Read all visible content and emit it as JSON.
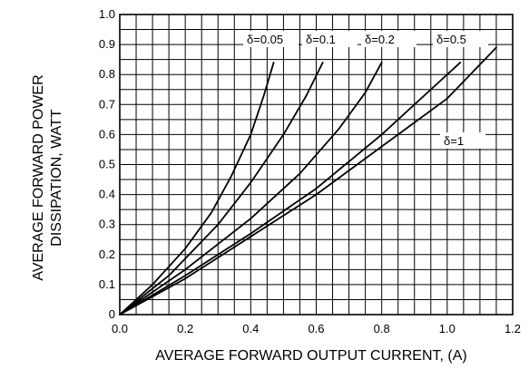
{
  "chart_data": {
    "type": "line",
    "title": "",
    "xlabel": "AVERAGE FORWARD OUTPUT CURRENT, (A)",
    "ylabel_lines": [
      "AVERAGE FORWARD POWER",
      "DISSIPATION, WATT"
    ],
    "xlim": [
      0,
      1.2
    ],
    "ylim": [
      0,
      1.0
    ],
    "x_ticks": [
      "0.0",
      "0.2",
      "0.4",
      "0.6",
      "0.8",
      "1.0",
      "1.2"
    ],
    "y_ticks": [
      "0",
      "0.1",
      "0.2",
      "0.3",
      "0.4",
      "0.5",
      "0.6",
      "0.7",
      "0.8",
      "0.9",
      "1.0"
    ],
    "grid": true,
    "series": [
      {
        "name": "δ=0.05",
        "points": [
          [
            0,
            0
          ],
          [
            0.1,
            0.1
          ],
          [
            0.2,
            0.22
          ],
          [
            0.28,
            0.34
          ],
          [
            0.34,
            0.46
          ],
          [
            0.4,
            0.6
          ],
          [
            0.44,
            0.73
          ],
          [
            0.47,
            0.84
          ]
        ]
      },
      {
        "name": "δ=0.1",
        "points": [
          [
            0,
            0
          ],
          [
            0.15,
            0.13
          ],
          [
            0.3,
            0.3
          ],
          [
            0.4,
            0.44
          ],
          [
            0.5,
            0.6
          ],
          [
            0.57,
            0.73
          ],
          [
            0.62,
            0.84
          ]
        ]
      },
      {
        "name": "δ=0.2",
        "points": [
          [
            0,
            0
          ],
          [
            0.2,
            0.15
          ],
          [
            0.4,
            0.32
          ],
          [
            0.55,
            0.47
          ],
          [
            0.67,
            0.62
          ],
          [
            0.75,
            0.74
          ],
          [
            0.8,
            0.84
          ]
        ]
      },
      {
        "name": "δ=0.5",
        "points": [
          [
            0,
            0
          ],
          [
            0.2,
            0.13
          ],
          [
            0.4,
            0.27
          ],
          [
            0.6,
            0.42
          ],
          [
            0.8,
            0.6
          ],
          [
            0.95,
            0.75
          ],
          [
            1.04,
            0.84
          ]
        ]
      },
      {
        "name": "δ=1",
        "points": [
          [
            0,
            0
          ],
          [
            0.2,
            0.12
          ],
          [
            0.4,
            0.26
          ],
          [
            0.6,
            0.4
          ],
          [
            0.8,
            0.56
          ],
          [
            1.0,
            0.72
          ],
          [
            1.15,
            0.89
          ]
        ]
      }
    ]
  }
}
